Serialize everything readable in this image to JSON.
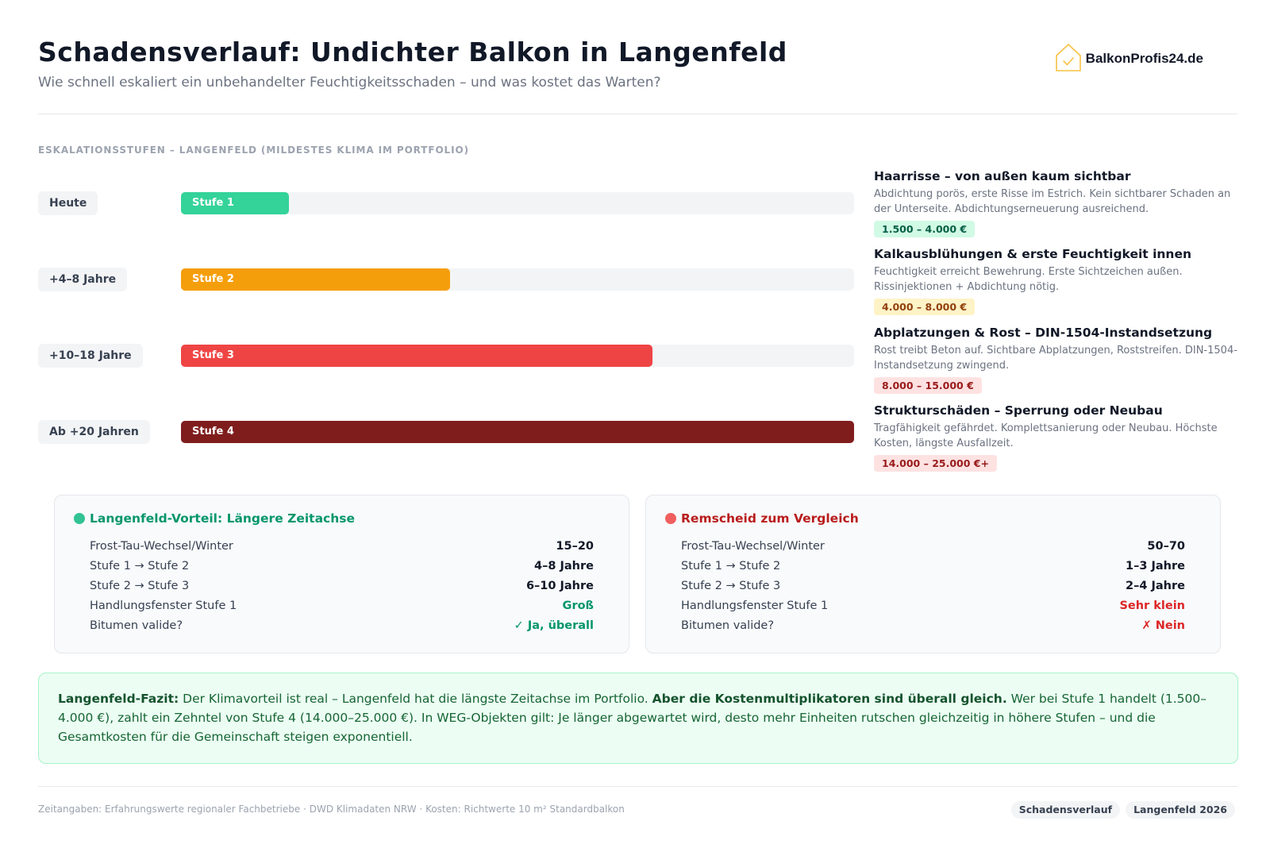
{
  "header": {
    "title": "Schadensverlauf: Undichter Balkon in Langenfeld",
    "subtitle": "Wie schnell eskaliert ein unbehandelter Feuchtigkeitsschaden – und was kostet das Warten?",
    "logo_text": "BalkonProfis24.de",
    "logo_icon": "house-check-icon"
  },
  "section_label": "ESKALATIONSSTUFEN – LANGENFELD (MILDESTES KLIMA IM PORTFOLIO)",
  "chart_data": {
    "type": "bar",
    "orientation": "horizontal",
    "categories": [
      "Heute",
      "+4–8 Jahre",
      "+10–18 Jahre",
      "Ab +20 Jahren"
    ],
    "series": [
      {
        "values": [
          16,
          40,
          70,
          100
        ]
      }
    ],
    "bar_labels": [
      "Stufe 1",
      "Stufe 2",
      "Stufe 3",
      "Stufe 4"
    ],
    "colors": [
      "#34d399",
      "#f59e0b",
      "#ef4444",
      "#7f1d1d"
    ],
    "xlim": [
      0,
      100
    ],
    "grid": false,
    "legend": "none"
  },
  "stages": [
    {
      "title": "Haarrisse – von außen kaum sichtbar",
      "text": "Abdichtung porös, erste Risse im Estrich. Kein sichtbarer Schaden an der Unterseite. Abdichtungserneuerung ausreichend.",
      "cost": "1.500 – 4.000 €",
      "badge_bg": "#d1fae5",
      "badge_color": "#065f46"
    },
    {
      "title": "Kalkausblühungen & erste Feuchtigkeit innen",
      "text": "Feuchtigkeit erreicht Bewehrung. Erste Sichtzeichen außen. Rissinjektionen + Abdichtung nötig.",
      "cost": "4.000 – 8.000 €",
      "badge_bg": "#fef3c7",
      "badge_color": "#92400e"
    },
    {
      "title": "Abplatzungen & Rost – DIN-1504-Instandsetzung",
      "text": "Rost treibt Beton auf. Sichtbare Abplatzungen, Roststreifen. DIN-1504-Instandsetzung zwingend.",
      "cost": "8.000 – 15.000 €",
      "badge_bg": "#fee2e2",
      "badge_color": "#991b1b"
    },
    {
      "title": "Strukturschäden – Sperrung oder Neubau",
      "text": "Tragfähigkeit gefährdet. Komplettsanierung oder Neubau. Höchste Kosten, längste Ausfallzeit.",
      "cost": "14.000 – 25.000 €+",
      "badge_bg": "#fee2e2",
      "badge_color": "#991b1b"
    }
  ],
  "comparison": {
    "left": {
      "title": "Langenfeld-Vorteil: Längere Zeitachse",
      "title_color": "#059669",
      "dot_color": "#10b981",
      "rows": [
        {
          "key": "Frost-Tau-Wechsel/Winter",
          "value": "15–20",
          "color": "#111827"
        },
        {
          "key": "Stufe 1 → Stufe 2",
          "value": "4–8 Jahre",
          "color": "#111827"
        },
        {
          "key": "Stufe 2 → Stufe 3",
          "value": "6–10 Jahre",
          "color": "#111827"
        },
        {
          "key": "Handlungsfenster Stufe 1",
          "value": "Groß",
          "color": "#059669"
        },
        {
          "key": "Bitumen valide?",
          "value": "✓ Ja, überall",
          "color": "#059669"
        }
      ]
    },
    "right": {
      "title": "Remscheid zum Vergleich",
      "title_color": "#b91c1c",
      "dot_color": "#ef4444",
      "rows": [
        {
          "key": "Frost-Tau-Wechsel/Winter",
          "value": "50–70",
          "color": "#111827"
        },
        {
          "key": "Stufe 1 → Stufe 2",
          "value": "1–3 Jahre",
          "color": "#111827"
        },
        {
          "key": "Stufe 2 → Stufe 3",
          "value": "2–4 Jahre",
          "color": "#111827"
        },
        {
          "key": "Handlungsfenster Stufe 1",
          "value": "Sehr klein",
          "color": "#dc2626"
        },
        {
          "key": "Bitumen valide?",
          "value": "✗ Nein",
          "color": "#dc2626"
        }
      ]
    }
  },
  "fazit": {
    "lead": "Langenfeld-Fazit:",
    "text1": " Der Klimavorteil ist real – Langenfeld hat die längste Zeitachse im Portfolio. ",
    "bold": "Aber die Kostenmultiplikatoren sind überall gleich.",
    "text2": " Wer bei Stufe 1 handelt (1.500–4.000 €), zahlt ein Zehntel von Stufe 4 (14.000–25.000 €). In WEG-Objekten gilt: Je länger abgewartet wird, desto mehr Einheiten rutschen gleichzeitig in höhere Stufen – und die Gesamtkosten für die Gemeinschaft steigen exponentiell."
  },
  "footer": {
    "note": "Zeitangaben: Erfahrungswerte regionaler Fachbetriebe · DWD Klimadaten NRW · Kosten: Richtwerte 10 m² Standardbalkon",
    "tags": [
      "Schadensverlauf",
      "Langenfeld 2026"
    ]
  }
}
